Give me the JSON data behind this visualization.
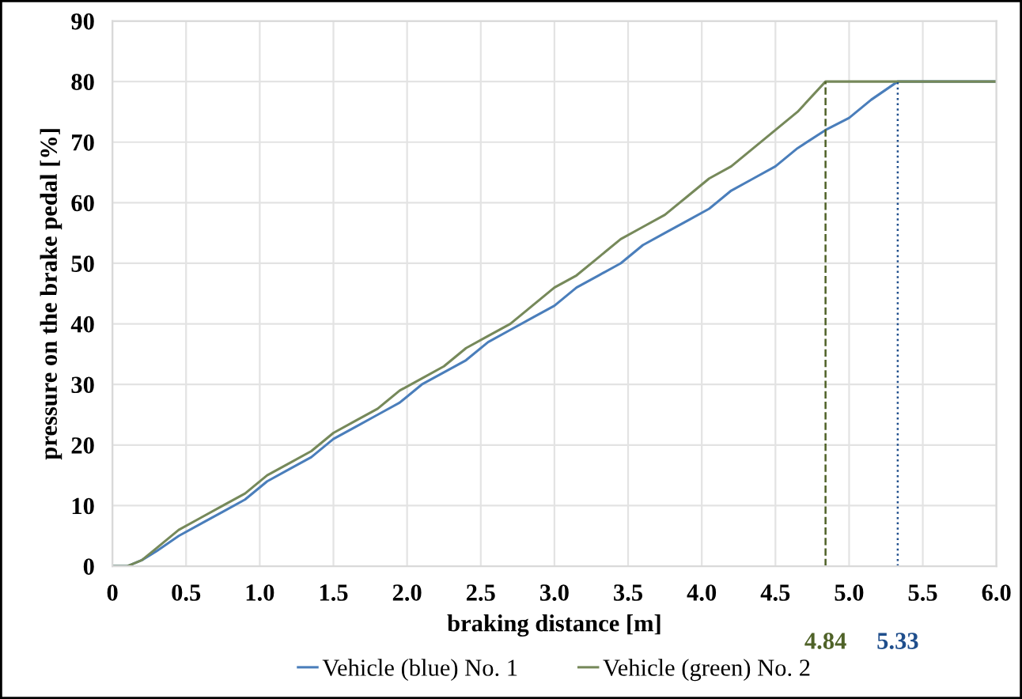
{
  "chart_data": {
    "type": "line",
    "xlabel": "braking distance [m]",
    "ylabel": "pressure on the brake pedal [%]",
    "xlim": [
      0,
      6.0
    ],
    "xticks": [
      0,
      {
        "value": 0.5,
        "label": "0.5"
      },
      {
        "value": 1.0,
        "label": "1.0"
      },
      {
        "value": 1.5,
        "label": "1.5"
      },
      {
        "value": 2.0,
        "label": "2.0"
      },
      {
        "value": 2.5,
        "label": "2.5"
      },
      {
        "value": 3.0,
        "label": "3.0"
      },
      {
        "value": 3.5,
        "label": "3.5"
      },
      {
        "value": 4.0,
        "label": "4.0"
      },
      {
        "value": 4.5,
        "label": "4.5"
      },
      {
        "value": 5.0,
        "label": "5.0"
      },
      {
        "value": 5.5,
        "label": "5.5"
      },
      {
        "value": 6.0,
        "label": "6.0"
      }
    ],
    "ylim": [
      0,
      90
    ],
    "yticks": [
      0,
      10,
      20,
      30,
      40,
      50,
      60,
      70,
      80,
      90
    ],
    "grid": true,
    "legend": "bottom",
    "marker": "none",
    "line_style": "solid",
    "series": [
      {
        "name": "Vehicle (blue) No. 1",
        "color": "#4a7ebb",
        "x": [
          0,
          0.1,
          0.2,
          0.3,
          0.45,
          0.6,
          0.75,
          0.9,
          1.05,
          1.2,
          1.35,
          1.5,
          1.65,
          1.8,
          1.95,
          2.1,
          2.25,
          2.4,
          2.55,
          2.7,
          2.85,
          3.0,
          3.15,
          3.3,
          3.45,
          3.6,
          3.75,
          3.9,
          4.05,
          4.2,
          4.35,
          4.5,
          4.65,
          4.84,
          5.0,
          5.15,
          5.33,
          5.5,
          6.0
        ],
        "values": [
          0,
          0,
          1,
          2.5,
          5,
          7,
          9,
          11,
          14,
          16,
          18,
          21,
          23,
          25,
          27,
          30,
          32,
          34,
          37,
          39,
          41,
          43,
          46,
          48,
          50,
          53,
          55,
          57,
          59,
          62,
          64,
          66,
          69,
          72,
          74,
          77,
          80,
          80,
          80
        ]
      },
      {
        "name": "Vehicle (green) No. 2",
        "color": "#76895a",
        "x": [
          0,
          0.1,
          0.2,
          0.3,
          0.45,
          0.6,
          0.75,
          0.9,
          1.05,
          1.2,
          1.35,
          1.5,
          1.65,
          1.8,
          1.95,
          2.1,
          2.25,
          2.4,
          2.55,
          2.7,
          2.85,
          3.0,
          3.15,
          3.3,
          3.45,
          3.6,
          3.75,
          3.9,
          4.05,
          4.2,
          4.35,
          4.5,
          4.65,
          4.84,
          5.0,
          5.5,
          6.0
        ],
        "values": [
          0,
          0,
          1,
          3,
          6,
          8,
          10,
          12,
          15,
          17,
          19,
          22,
          24,
          26,
          29,
          31,
          33,
          36,
          38,
          40,
          43,
          46,
          48,
          51,
          54,
          56,
          58,
          61,
          64,
          66,
          69,
          72,
          75,
          80,
          80,
          80,
          80
        ]
      }
    ],
    "ref_lines": [
      {
        "axis": "x",
        "value": 4.84,
        "label": "4.84",
        "color": "#4f6228",
        "line_style": "dashed"
      },
      {
        "axis": "x",
        "value": 5.33,
        "label": "5.33",
        "color": "#1f4e8c",
        "line_style": "dotted"
      }
    ]
  }
}
